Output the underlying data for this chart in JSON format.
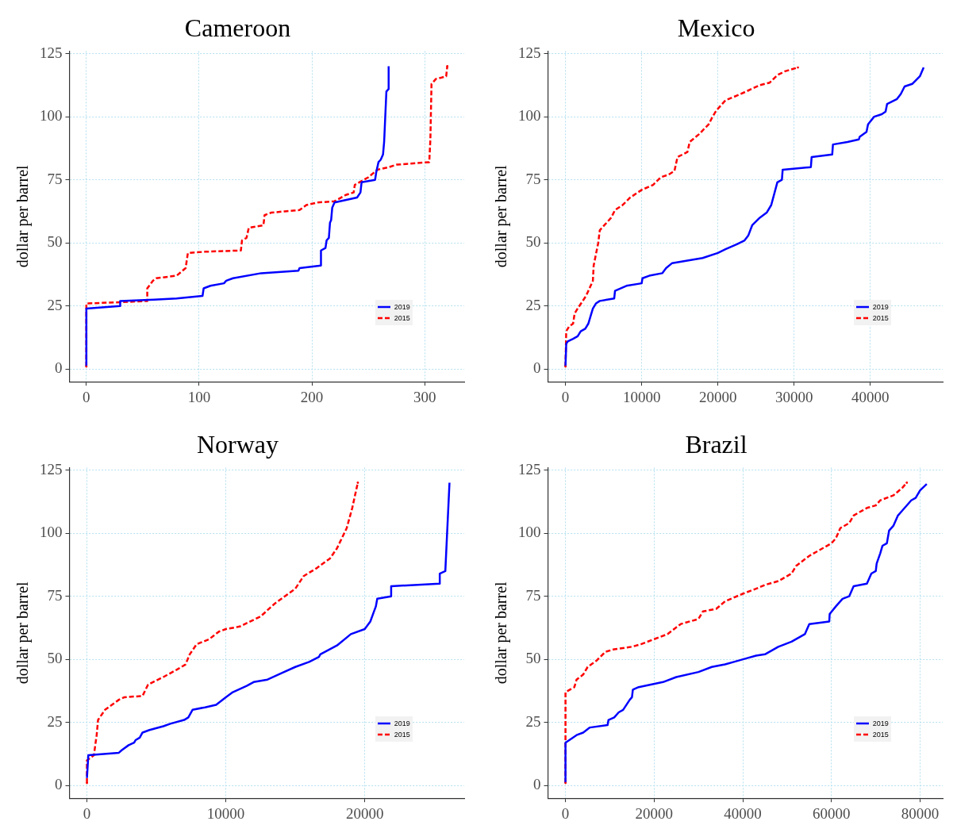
{
  "chart_data": [
    {
      "type": "line",
      "title": "Cameroon",
      "ylabel": "dollar per barrel",
      "xlim": [
        -15,
        335
      ],
      "xticks": [
        0,
        100,
        200,
        300
      ],
      "ylim": [
        -5,
        126
      ],
      "yticks": [
        0,
        25,
        50,
        75,
        100,
        125
      ],
      "grid": true,
      "legend": "bottom right",
      "marker": "none",
      "series": [
        {
          "name": "2019",
          "color": "#0000ff",
          "line_style": "solid",
          "x": [
            0,
            0,
            30,
            30,
            60,
            80,
            103,
            104,
            110,
            122,
            124,
            130,
            155,
            188,
            189,
            208,
            208,
            212,
            213,
            215,
            216,
            217,
            218,
            220,
            240,
            243,
            244,
            256,
            257,
            259,
            261,
            263,
            264,
            265,
            266,
            268,
            268
          ],
          "values": [
            1,
            24,
            25,
            27,
            27.5,
            28,
            29,
            32,
            33,
            34,
            35,
            36,
            38,
            39,
            40,
            41,
            47,
            48,
            51,
            52,
            58,
            59,
            64,
            66,
            68,
            70,
            74,
            75,
            78,
            82,
            83,
            85,
            90,
            100,
            110,
            111,
            120
          ]
        },
        {
          "name": "2015",
          "color": "#ff0000",
          "line_style": "dashed",
          "x": [
            0,
            0,
            30,
            54,
            54,
            59,
            62,
            80,
            88,
            90,
            105,
            137,
            138,
            142,
            144,
            157,
            158,
            164,
            176,
            189,
            195,
            205,
            220,
            230,
            237,
            238,
            250,
            258,
            268,
            275,
            304,
            305,
            306,
            310,
            315,
            319,
            320
          ],
          "values": [
            1,
            26,
            26.5,
            27,
            32,
            35,
            36,
            37,
            40,
            46,
            46.5,
            47,
            51,
            52,
            56,
            57,
            61,
            62,
            62.5,
            63,
            65,
            66,
            66.5,
            69,
            70,
            73,
            76,
            79,
            80,
            81,
            82,
            91,
            113,
            115,
            115.5,
            116,
            120
          ]
        }
      ]
    },
    {
      "type": "line",
      "title": "Mexico",
      "ylabel": "dollar per barrel",
      "xlim": [
        -2300,
        49500
      ],
      "xticks": [
        0,
        10000,
        20000,
        30000,
        40000
      ],
      "ylim": [
        -5,
        126
      ],
      "yticks": [
        0,
        25,
        50,
        75,
        100,
        125
      ],
      "grid": true,
      "legend": "bottom right",
      "marker": "none",
      "series": [
        {
          "name": "2019",
          "color": "#0000ff",
          "line_style": "solid",
          "x": [
            0,
            100,
            300,
            1000,
            1600,
            2000,
            2600,
            3000,
            3300,
            3600,
            4000,
            4500,
            6400,
            6500,
            8000,
            10000,
            10100,
            11000,
            12700,
            13200,
            14000,
            16000,
            18000,
            20000,
            21000,
            22500,
            23500,
            24000,
            24500,
            25500,
            26400,
            27000,
            27800,
            28400,
            28500,
            32200,
            32300,
            35000,
            35100,
            37000,
            38500,
            38600,
            39500,
            39700,
            40500,
            41500,
            42000,
            42200,
            43500,
            44000,
            44500,
            45500,
            46500,
            47000
          ],
          "values": [
            1,
            10,
            11,
            12,
            13,
            15,
            16,
            18,
            21,
            24,
            26,
            27,
            28,
            31,
            33,
            34,
            36,
            37,
            38,
            40,
            42,
            43,
            44,
            46,
            47.5,
            49.5,
            51,
            53,
            57,
            60,
            62,
            65,
            74,
            75,
            79,
            80,
            84,
            85,
            89,
            90,
            91,
            92,
            94,
            97,
            100,
            101,
            102,
            105,
            107,
            109,
            112,
            113,
            116,
            119.5
          ]
        },
        {
          "name": "2015",
          "color": "#ff0000",
          "line_style": "dashed",
          "x": [
            0,
            100,
            500,
            1000,
            1200,
            1600,
            2700,
            3000,
            3600,
            3700,
            4300,
            4500,
            6000,
            6500,
            7500,
            8500,
            10000,
            11500,
            12500,
            13500,
            14300,
            14700,
            16000,
            16300,
            17500,
            18800,
            19300,
            19800,
            21000,
            23000,
            25500,
            26800,
            27800,
            28800,
            30500
          ],
          "values": [
            1,
            15,
            17,
            18,
            22,
            24,
            29,
            31,
            35,
            41,
            50,
            55,
            60,
            63,
            65,
            68,
            71,
            73,
            76,
            77,
            78.5,
            84,
            86,
            90,
            93,
            97,
            100,
            102.5,
            106.5,
            109,
            112.5,
            113.5,
            116.5,
            118,
            119.5
          ]
        }
      ]
    },
    {
      "type": "line",
      "title": "Norway",
      "ylabel": "dollar per barrel",
      "xlim": [
        -1260,
        27160
      ],
      "xticks": [
        0,
        10000,
        20000
      ],
      "ylim": [
        -5,
        126
      ],
      "yticks": [
        0,
        25,
        50,
        75,
        100,
        125
      ],
      "grid": true,
      "legend": "bottom right",
      "marker": "none",
      "series": [
        {
          "name": "2019",
          "color": "#0000ff",
          "line_style": "solid",
          "x": [
            0,
            100,
            2300,
            2500,
            3000,
            3400,
            3500,
            3800,
            4000,
            4500,
            5500,
            6000,
            7000,
            7300,
            7600,
            8500,
            9300,
            10000,
            10500,
            11500,
            12000,
            13000,
            14000,
            15000,
            16000,
            16700,
            16800,
            18000,
            19000,
            20000,
            20400,
            20600,
            20800,
            20900,
            21900,
            21900,
            25400,
            25400,
            25800,
            26100
          ],
          "values": [
            3,
            12,
            13,
            14,
            16,
            17,
            18,
            19,
            21,
            22,
            23.5,
            24.5,
            26,
            27,
            30,
            31,
            32,
            35,
            37,
            39.5,
            41,
            42,
            44.5,
            47,
            49,
            51,
            52,
            55.5,
            60,
            62,
            65,
            68,
            71,
            74,
            75,
            79,
            80,
            84,
            85,
            120
          ]
        },
        {
          "name": "2015",
          "color": "#ff0000",
          "line_style": "dashed",
          "x": [
            0,
            0,
            500,
            700,
            800,
            1300,
            2300,
            2700,
            4000,
            4400,
            5500,
            6500,
            7100,
            7400,
            7900,
            8800,
            9500,
            10000,
            11000,
            12500,
            13500,
            15000,
            15600,
            16500,
            17500,
            18000,
            18700,
            19100,
            19500
          ],
          "values": [
            1,
            10,
            12,
            20,
            26,
            30,
            34,
            35,
            35.5,
            40,
            43,
            46,
            48,
            52,
            56,
            58,
            61,
            62,
            63,
            67,
            72,
            78,
            83,
            86,
            90,
            94,
            102,
            110,
            120
          ]
        }
      ]
    },
    {
      "type": "line",
      "title": "Brazil",
      "ylabel": "dollar per barrel",
      "xlim": [
        -3960,
        85100
      ],
      "xticks": [
        0,
        20000,
        40000,
        60000,
        80000
      ],
      "ylim": [
        -5,
        126
      ],
      "yticks": [
        0,
        25,
        50,
        75,
        100,
        125
      ],
      "grid": true,
      "legend": "bottom right",
      "marker": "none",
      "series": [
        {
          "name": "2019",
          "color": "#0000ff",
          "line_style": "solid",
          "x": [
            0,
            0,
            2500,
            4000,
            5500,
            9500,
            9700,
            11000,
            12000,
            13000,
            14500,
            15000,
            15200,
            16500,
            22000,
            25000,
            30000,
            33000,
            36000,
            38000,
            41000,
            43000,
            45000,
            48000,
            51000,
            54000,
            55000,
            59500,
            59600,
            61000,
            62500,
            64000,
            65000,
            68000,
            69000,
            70000,
            70200,
            71000,
            71500,
            72500,
            73000,
            74000,
            75000,
            76000,
            78000,
            79000,
            80000,
            81500
          ],
          "values": [
            1,
            17,
            20,
            21,
            23,
            24,
            26,
            27,
            29,
            30,
            34,
            35,
            38,
            39,
            41,
            43,
            45,
            47,
            48,
            49,
            50.5,
            51.5,
            52,
            55,
            57,
            60,
            64,
            65,
            68,
            71,
            74,
            75,
            79,
            80,
            84,
            85,
            88,
            92,
            95,
            96,
            101,
            103,
            107,
            109,
            113,
            114,
            117,
            119.5
          ]
        },
        {
          "name": "2015",
          "color": "#ff0000",
          "line_style": "dashed",
          "x": [
            0,
            0,
            1000,
            2000,
            2500,
            4000,
            5000,
            7000,
            9000,
            11000,
            15000,
            17000,
            20000,
            23000,
            26000,
            30000,
            31000,
            34000,
            36000,
            40000,
            43000,
            45000,
            48000,
            51000,
            52000,
            55000,
            58000,
            60000,
            61000,
            62000,
            64000,
            65000,
            68000,
            70000,
            71000,
            74000,
            76000,
            77000
          ],
          "values": [
            1,
            37,
            38,
            39,
            42,
            44,
            47,
            49.5,
            53,
            54,
            55,
            56,
            58,
            60,
            64,
            66,
            69,
            70,
            73,
            76,
            78,
            79.5,
            81,
            84,
            87,
            91,
            94,
            96,
            98,
            102,
            104,
            107,
            110,
            111,
            113,
            115,
            118,
            120
          ]
        }
      ]
    }
  ]
}
